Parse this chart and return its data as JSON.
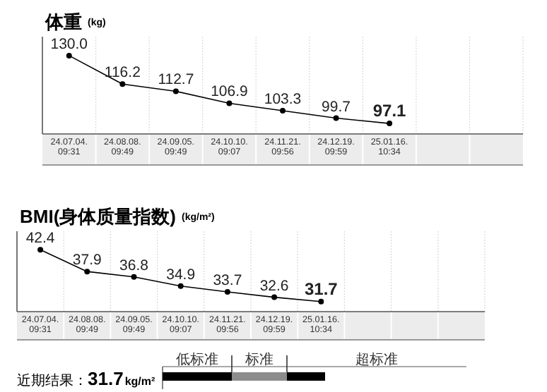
{
  "chart_data": [
    {
      "type": "line",
      "title": "体重",
      "subtitle": "(kg)",
      "categories": [
        "24.07.04.\n09:31",
        "24.08.08.\n09:49",
        "24.09.05.\n09:49",
        "24.10.10.\n09:07",
        "24.11.21.\n09:56",
        "24.12.19.\n09:59",
        "25.01.16.\n10:34",
        null,
        null
      ],
      "series": [
        {
          "color": "#000000",
          "values": [
            130.0,
            116.2,
            112.7,
            106.9,
            103.3,
            99.7,
            97.1,
            null,
            null
          ],
          "value_labels": [
            "130.0",
            "116.2",
            "112.7",
            "106.9",
            "103.3",
            "99.7",
            "97.1",
            null,
            null
          ]
        }
      ],
      "marker": "circle",
      "grid": "x",
      "tick_labels": "x"
    },
    {
      "type": "line",
      "title": "BMI(身体质量指数)",
      "subtitle": "(kg/m²)",
      "categories": [
        "24.07.04.\n09:31",
        "24.08.08.\n09:49",
        "24.09.05.\n09:49",
        "24.10.10.\n09:07",
        "24.11.21.\n09:56",
        "24.12.19.\n09:59",
        "25.01.16.\n10:34",
        null,
        null,
        null
      ],
      "series": [
        {
          "color": "#000000",
          "values": [
            42.4,
            37.9,
            36.8,
            34.9,
            33.7,
            32.6,
            31.7,
            null,
            null,
            null
          ],
          "value_labels": [
            "42.4",
            "37.9",
            "36.8",
            "34.9",
            "33.7",
            "32.6",
            "31.7",
            null,
            null,
            null
          ]
        }
      ],
      "marker": "circle",
      "grid": "x",
      "tick_labels": "x"
    },
    {
      "type": "other",
      "title": "近期结果：",
      "annotations": [
        "31.7",
        "kg/m²"
      ],
      "categories": [
        "低标准",
        "标准",
        "超标准"
      ],
      "colors": [
        "#000000",
        "#8c8c8c",
        "#000000"
      ]
    }
  ]
}
